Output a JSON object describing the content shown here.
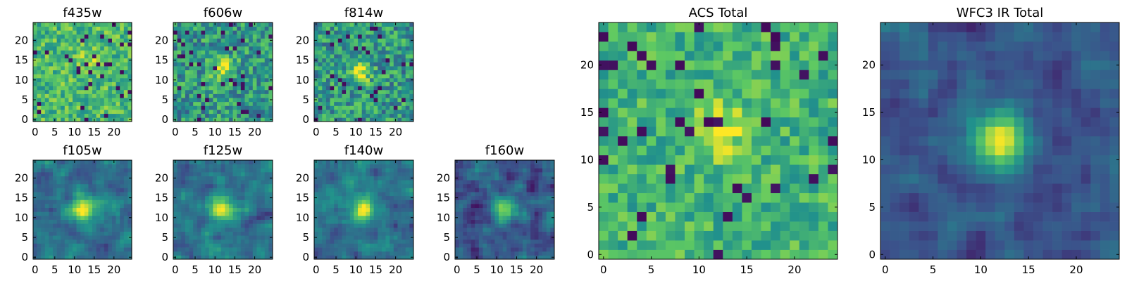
{
  "colormap": {
    "name": "viridis",
    "stops": [
      "#440154",
      "#3b528b",
      "#21918c",
      "#5ec962",
      "#fde725"
    ]
  },
  "chart_data": [
    {
      "type": "heatmap",
      "title": "f435w",
      "grid_size": 25,
      "peak": {
        "x": 14,
        "y": 15
      },
      "style": "noisy-bright",
      "xticks": [
        0,
        5,
        10,
        15,
        20
      ],
      "yticks": [
        0,
        5,
        10,
        15,
        20
      ],
      "xlim": [
        0,
        24
      ],
      "ylim": [
        0,
        24
      ]
    },
    {
      "type": "heatmap",
      "title": "f606w",
      "grid_size": 25,
      "peak": {
        "x": 12,
        "y": 13
      },
      "style": "noisy",
      "xticks": [
        0,
        5,
        10,
        15,
        20
      ],
      "yticks": [
        0,
        5,
        10,
        15,
        20
      ],
      "xlim": [
        0,
        24
      ],
      "ylim": [
        0,
        24
      ]
    },
    {
      "type": "heatmap",
      "title": "f814w",
      "grid_size": 25,
      "peak": {
        "x": 11,
        "y": 12
      },
      "style": "noisy",
      "xticks": [
        0,
        5,
        10,
        15,
        20
      ],
      "yticks": [
        0,
        5,
        10,
        15,
        20
      ],
      "xlim": [
        0,
        24
      ],
      "ylim": [
        0,
        24
      ]
    },
    {
      "type": "heatmap",
      "title": "f105w",
      "grid_size": 25,
      "peak": {
        "x": 12,
        "y": 12
      },
      "style": "smooth",
      "xticks": [
        0,
        5,
        10,
        15,
        20
      ],
      "yticks": [
        0,
        5,
        10,
        15,
        20
      ],
      "xlim": [
        0,
        24
      ],
      "ylim": [
        0,
        24
      ]
    },
    {
      "type": "heatmap",
      "title": "f125w",
      "grid_size": 25,
      "peak": {
        "x": 12,
        "y": 12
      },
      "style": "smooth",
      "xticks": [
        0,
        5,
        10,
        15,
        20
      ],
      "yticks": [
        0,
        5,
        10,
        15,
        20
      ],
      "xlim": [
        0,
        24
      ],
      "ylim": [
        0,
        24
      ]
    },
    {
      "type": "heatmap",
      "title": "f140w",
      "grid_size": 25,
      "peak": {
        "x": 12,
        "y": 12
      },
      "style": "smooth",
      "xticks": [
        0,
        5,
        10,
        15,
        20
      ],
      "yticks": [
        0,
        5,
        10,
        15,
        20
      ],
      "xlim": [
        0,
        24
      ],
      "ylim": [
        0,
        24
      ]
    },
    {
      "type": "heatmap",
      "title": "f160w",
      "grid_size": 25,
      "peak": {
        "x": 12,
        "y": 12
      },
      "style": "smooth-dark",
      "xticks": [
        0,
        5,
        10,
        15,
        20
      ],
      "yticks": [
        0,
        5,
        10,
        15,
        20
      ],
      "xlim": [
        0,
        24
      ],
      "ylim": [
        0,
        24
      ]
    },
    {
      "type": "heatmap",
      "title": "ACS Total",
      "grid_size": 25,
      "peak": {
        "x": 12,
        "y": 13
      },
      "style": "acs",
      "xticks": [
        0,
        5,
        10,
        15,
        20
      ],
      "yticks": [
        0,
        5,
        10,
        15,
        20
      ],
      "xlim": [
        0,
        24
      ],
      "ylim": [
        0,
        24
      ]
    },
    {
      "type": "heatmap",
      "title": "WFC3 IR Total",
      "grid_size": 25,
      "peak": {
        "x": 12,
        "y": 12
      },
      "style": "ir",
      "xticks": [
        0,
        5,
        10,
        15,
        20
      ],
      "yticks": [
        0,
        5,
        10,
        15,
        20
      ],
      "xlim": [
        0,
        24
      ],
      "ylim": [
        0,
        24
      ]
    }
  ]
}
